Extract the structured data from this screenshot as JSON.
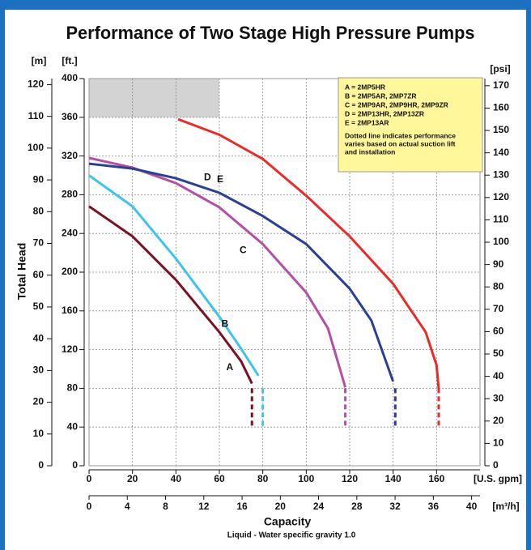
{
  "chart_data": {
    "type": "line",
    "title": "Performance of Two Stage High Pressure Pumps",
    "y_label": "Total Head",
    "x_label": "Capacity",
    "note": "Liquid - Water specific gravity 1.0",
    "x_unit": "[U.S. gpm]",
    "xlim": [
      0,
      180
    ],
    "xticks": [
      0,
      20,
      40,
      60,
      80,
      100,
      120,
      140,
      160
    ],
    "y_unit": "[ft.]",
    "ylim": [
      0,
      400
    ],
    "yticks": [
      0,
      40,
      80,
      120,
      160,
      200,
      240,
      280,
      320,
      360,
      400
    ],
    "grid": true,
    "shaded_region": {
      "x": [
        0,
        60
      ],
      "y": [
        360,
        400
      ],
      "color": "#d3d3d3"
    },
    "m_axis": {
      "label": "[m]",
      "lim": [
        0,
        121.9
      ],
      "ticks": [
        0,
        10,
        20,
        30,
        40,
        50,
        60,
        70,
        80,
        90,
        100,
        110,
        120
      ]
    },
    "psi_axis": {
      "label": "[psi]",
      "lim": [
        0,
        173.2
      ],
      "ticks": [
        0,
        10,
        20,
        30,
        40,
        50,
        60,
        70,
        80,
        90,
        100,
        110,
        120,
        130,
        140,
        150,
        160,
        170
      ]
    },
    "m3h_axis": {
      "label": "[m³/h]",
      "lim": [
        0,
        40.88
      ],
      "ticks": [
        0,
        4,
        8,
        12,
        16,
        20,
        24,
        28,
        32,
        36,
        40
      ]
    },
    "legend_note": [
      "Dotted line indicates performance",
      "varies based on actual suction lift",
      "and installation"
    ],
    "series": [
      {
        "name": "A",
        "legend": "A = 2MP5HR",
        "color": "#7b1224",
        "x": [
          0,
          20,
          40,
          60,
          70,
          75
        ],
        "values": [
          268,
          237,
          192,
          138,
          108,
          85
        ],
        "dashed_x": [
          75,
          75
        ],
        "dashed_values": [
          80,
          40
        ]
      },
      {
        "name": "B",
        "legend": "B = 2MP5AR, 2MP7ZR",
        "color": "#3cc3f0",
        "x": [
          0,
          20,
          40,
          60,
          70,
          78
        ],
        "values": [
          300,
          268,
          214,
          154,
          121,
          93
        ],
        "dashed_x": [
          80,
          80
        ],
        "dashed_values": [
          80,
          40
        ]
      },
      {
        "name": "C",
        "legend": "C = 2MP9AR, 2MP9HR, 2MP9ZR",
        "color": "#b54ea6",
        "x": [
          0,
          20,
          40,
          60,
          80,
          100,
          110,
          118
        ],
        "values": [
          318,
          308,
          292,
          267,
          229,
          179,
          142,
          81
        ],
        "dashed_x": [
          118,
          118
        ],
        "dashed_values": [
          80,
          40
        ]
      },
      {
        "name": "D",
        "legend": "D = 2MP13HR, 2MP13ZR",
        "color": "#2b3f95",
        "x": [
          0,
          20,
          40,
          60,
          80,
          100,
          120,
          130,
          140
        ],
        "values": [
          312,
          307,
          297,
          282,
          258,
          229,
          183,
          150,
          87
        ],
        "dashed_x": [
          141,
          141
        ],
        "dashed_values": [
          80,
          40
        ]
      },
      {
        "name": "E",
        "legend": "E = 2MP13AR",
        "color": "#ec2a2a",
        "x": [
          41,
          60,
          80,
          100,
          120,
          140,
          155,
          160,
          161
        ],
        "values": [
          358,
          342,
          317,
          279,
          237,
          188,
          138,
          104,
          79
        ],
        "dashed_x": [
          161,
          161
        ],
        "dashed_values": [
          80,
          40
        ]
      }
    ]
  }
}
